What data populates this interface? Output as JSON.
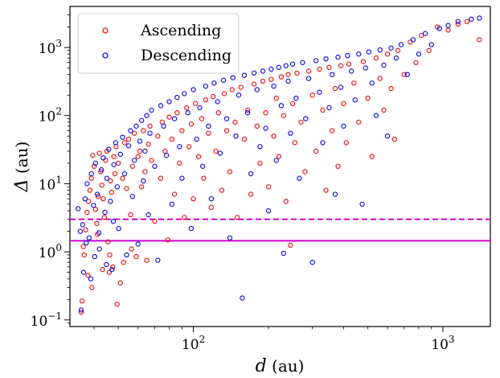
{
  "chart_data": {
    "type": "scatter",
    "title": "",
    "xscale": "log",
    "yscale": "log",
    "xlim": [
      32,
      1550
    ],
    "ylim": [
      0.08,
      4000
    ],
    "x_label_symbol": "d",
    "x_label_unit": " (au)",
    "y_label_symbol": "Δ",
    "y_label_unit": " (au)",
    "x_ticks": [
      {
        "value": 100,
        "base": "10",
        "exp": "2"
      },
      {
        "value": 1000,
        "base": "10",
        "exp": "3"
      }
    ],
    "y_ticks": [
      {
        "value": 0.1,
        "base": "10",
        "exp": "−1"
      },
      {
        "value": 1,
        "base": "10",
        "exp": "0"
      },
      {
        "value": 10,
        "base": "10",
        "exp": "1"
      },
      {
        "value": 100,
        "base": "10",
        "exp": "2"
      },
      {
        "value": 1000,
        "base": "10",
        "exp": "3"
      }
    ],
    "legend_position": "top-left",
    "hlines": [
      {
        "y": 3.0,
        "style": "dashed",
        "color": "#cc00cc"
      },
      {
        "y": 1.45,
        "style": "solid",
        "color": "#cc00cc"
      }
    ],
    "series": [
      {
        "name": "Ascending",
        "color": "#e8191c",
        "points": [
          [
            35.5,
            0.13
          ],
          [
            35.8,
            0.19
          ],
          [
            36.5,
            0.9
          ],
          [
            37,
            2.1
          ],
          [
            37.5,
            3.8
          ],
          [
            38,
            5.5
          ],
          [
            38.5,
            8
          ],
          [
            39,
            12
          ],
          [
            39.5,
            26
          ],
          [
            40,
            18
          ],
          [
            40.5,
            4.2
          ],
          [
            41,
            2.6
          ],
          [
            41.5,
            6.5
          ],
          [
            42,
            28
          ],
          [
            42.5,
            15
          ],
          [
            43,
            9.5
          ],
          [
            43.5,
            6
          ],
          [
            44,
            3.2
          ],
          [
            44.5,
            22
          ],
          [
            45,
            30
          ],
          [
            45.5,
            1.4
          ],
          [
            46,
            0.5
          ],
          [
            46.5,
            11
          ],
          [
            47,
            7.5
          ],
          [
            47.5,
            0.6
          ],
          [
            48,
            25
          ],
          [
            48.5,
            14
          ],
          [
            49,
            35
          ],
          [
            49.5,
            0.17
          ],
          [
            50,
            20
          ],
          [
            51,
            0.35
          ],
          [
            52,
            12
          ],
          [
            53,
            40
          ],
          [
            54,
            8.5
          ],
          [
            55,
            45
          ],
          [
            56,
            3.5
          ],
          [
            57,
            18
          ],
          [
            58,
            55
          ],
          [
            59,
            0.85
          ],
          [
            60,
            25
          ],
          [
            61,
            30
          ],
          [
            62,
            9
          ],
          [
            63,
            60
          ],
          [
            64,
            15
          ],
          [
            65,
            0.75
          ],
          [
            66,
            38
          ],
          [
            67,
            70
          ],
          [
            68,
            22
          ],
          [
            70,
            2.8
          ],
          [
            72,
            50
          ],
          [
            74,
            12
          ],
          [
            75,
            80
          ],
          [
            77,
            30
          ],
          [
            79,
            1.5
          ],
          [
            80,
            95
          ],
          [
            82,
            45
          ],
          [
            84,
            7
          ],
          [
            86,
            110
          ],
          [
            88,
            20
          ],
          [
            90,
            60
          ],
          [
            92,
            3.2
          ],
          [
            94,
            130
          ],
          [
            96,
            35
          ],
          [
            98,
            75
          ],
          [
            100,
            6
          ],
          [
            102,
            150
          ],
          [
            105,
            25
          ],
          [
            108,
            90
          ],
          [
            110,
            12
          ],
          [
            112,
            170
          ],
          [
            115,
            55
          ],
          [
            118,
            4.5
          ],
          [
            120,
            190
          ],
          [
            123,
            30
          ],
          [
            126,
            110
          ],
          [
            130,
            8
          ],
          [
            133,
            210
          ],
          [
            136,
            60
          ],
          [
            140,
            15
          ],
          [
            143,
            240
          ],
          [
            147,
            80
          ],
          [
            150,
            3.2
          ],
          [
            155,
            260
          ],
          [
            160,
            45
          ],
          [
            165,
            120
          ],
          [
            170,
            7
          ],
          [
            175,
            290
          ],
          [
            180,
            70
          ],
          [
            185,
            20
          ],
          [
            190,
            320
          ],
          [
            195,
            110
          ],
          [
            200,
            9
          ],
          [
            205,
            340
          ],
          [
            210,
            50
          ],
          [
            215,
            180
          ],
          [
            220,
            25
          ],
          [
            225,
            370
          ],
          [
            230,
            100
          ],
          [
            235,
            5.5
          ],
          [
            240,
            400
          ],
          [
            245,
            1.25
          ],
          [
            250,
            150
          ],
          [
            255,
            40
          ],
          [
            260,
            420
          ],
          [
            270,
            80
          ],
          [
            280,
            15
          ],
          [
            290,
            450
          ],
          [
            300,
            200
          ],
          [
            310,
            30
          ],
          [
            320,
            480
          ],
          [
            330,
            120
          ],
          [
            340,
            8
          ],
          [
            350,
            510
          ],
          [
            360,
            60
          ],
          [
            370,
            250
          ],
          [
            380,
            18
          ],
          [
            390,
            540
          ],
          [
            400,
            150
          ],
          [
            410,
            40
          ],
          [
            420,
            570
          ],
          [
            440,
            300
          ],
          [
            460,
            80
          ],
          [
            480,
            620
          ],
          [
            500,
            180
          ],
          [
            520,
            25
          ],
          [
            540,
            700
          ],
          [
            560,
            350
          ],
          [
            580,
            120
          ],
          [
            600,
            800
          ],
          [
            620,
            250
          ],
          [
            640,
            45
          ],
          [
            660,
            900
          ],
          [
            700,
            400
          ],
          [
            740,
            1200
          ],
          [
            780,
            600
          ],
          [
            820,
            1500
          ],
          [
            880,
            900
          ],
          [
            950,
            2000
          ],
          [
            1050,
            1800
          ],
          [
            1150,
            2200
          ],
          [
            1250,
            2400
          ],
          [
            1400,
            1300
          ],
          [
            36.2,
            1.2
          ],
          [
            37.8,
            0.45
          ],
          [
            39.2,
            0.3
          ],
          [
            41.2,
            1.8
          ],
          [
            43.2,
            0.55
          ],
          [
            46.2,
            0.9
          ],
          [
            52.5,
            0.7
          ],
          [
            56.5,
            1.1
          ]
        ]
      },
      {
        "name": "Descending",
        "color": "#1414e0",
        "points": [
          [
            34.5,
            4.3
          ],
          [
            35.5,
            0.14
          ],
          [
            36,
            2.5
          ],
          [
            36.8,
            6
          ],
          [
            37.5,
            10
          ],
          [
            38.2,
            1.6
          ],
          [
            39,
            14
          ],
          [
            39.8,
            4.8
          ],
          [
            40.5,
            20
          ],
          [
            41.2,
            7
          ],
          [
            42,
            1.1
          ],
          [
            42.8,
            16
          ],
          [
            43.5,
            24
          ],
          [
            44.2,
            3.8
          ],
          [
            45,
            12
          ],
          [
            45.8,
            32
          ],
          [
            46.5,
            5.5
          ],
          [
            47.2,
            0.55
          ],
          [
            48,
            19
          ],
          [
            48.8,
            40
          ],
          [
            49.5,
            9
          ],
          [
            50.2,
            2.2
          ],
          [
            51,
            27
          ],
          [
            52,
            48
          ],
          [
            53,
            14
          ],
          [
            54,
            0.9
          ],
          [
            55,
            36
          ],
          [
            56,
            60
          ],
          [
            57,
            6.5
          ],
          [
            58,
            22
          ],
          [
            59,
            70
          ],
          [
            60,
            1.3
          ],
          [
            61,
            42
          ],
          [
            62,
            85
          ],
          [
            63,
            11
          ],
          [
            64,
            30
          ],
          [
            65,
            100
          ],
          [
            66,
            3.5
          ],
          [
            67,
            55
          ],
          [
            68,
            120
          ],
          [
            70,
            18
          ],
          [
            72,
            0.75
          ],
          [
            74,
            140
          ],
          [
            76,
            70
          ],
          [
            78,
            26
          ],
          [
            80,
            160
          ],
          [
            82,
            5
          ],
          [
            84,
            90
          ],
          [
            86,
            185
          ],
          [
            88,
            35
          ],
          [
            90,
            12
          ],
          [
            92,
            210
          ],
          [
            95,
            110
          ],
          [
            98,
            2.2
          ],
          [
            100,
            240
          ],
          [
            103,
            45
          ],
          [
            106,
            130
          ],
          [
            109,
            18
          ],
          [
            112,
            270
          ],
          [
            115,
            70
          ],
          [
            118,
            6
          ],
          [
            121,
            300
          ],
          [
            125,
            160
          ],
          [
            128,
            28
          ],
          [
            132,
            330
          ],
          [
            136,
            90
          ],
          [
            140,
            1.6
          ],
          [
            144,
            360
          ],
          [
            148,
            50
          ],
          [
            152,
            200
          ],
          [
            157,
            0.21
          ],
          [
            160,
            390
          ],
          [
            165,
            110
          ],
          [
            170,
            14
          ],
          [
            175,
            420
          ],
          [
            180,
            240
          ],
          [
            185,
            35
          ],
          [
            190,
            450
          ],
          [
            195,
            65
          ],
          [
            200,
            4
          ],
          [
            205,
            480
          ],
          [
            210,
            270
          ],
          [
            215,
            22
          ],
          [
            220,
            510
          ],
          [
            225,
            140
          ],
          [
            230,
            0.95
          ],
          [
            235,
            540
          ],
          [
            240,
            320
          ],
          [
            245,
            55
          ],
          [
            250,
            570
          ],
          [
            258,
            180
          ],
          [
            266,
            12
          ],
          [
            274,
            600
          ],
          [
            282,
            90
          ],
          [
            290,
            350
          ],
          [
            300,
            0.7
          ],
          [
            310,
            640
          ],
          [
            320,
            220
          ],
          [
            330,
            40
          ],
          [
            340,
            680
          ],
          [
            350,
            130
          ],
          [
            360,
            400
          ],
          [
            370,
            7
          ],
          [
            380,
            720
          ],
          [
            390,
            260
          ],
          [
            400,
            70
          ],
          [
            415,
            760
          ],
          [
            430,
            450
          ],
          [
            445,
            170
          ],
          [
            460,
            800
          ],
          [
            475,
            5
          ],
          [
            490,
            500
          ],
          [
            505,
            860
          ],
          [
            520,
            300
          ],
          [
            540,
            100
          ],
          [
            560,
            920
          ],
          [
            580,
            550
          ],
          [
            600,
            50
          ],
          [
            620,
            980
          ],
          [
            650,
            700
          ],
          [
            680,
            1100
          ],
          [
            720,
            400
          ],
          [
            760,
            1300
          ],
          [
            800,
            800
          ],
          [
            850,
            1600
          ],
          [
            900,
            1100
          ],
          [
            970,
            1900
          ],
          [
            1050,
            2100
          ],
          [
            1150,
            2400
          ],
          [
            1300,
            2600
          ],
          [
            1400,
            2700
          ],
          [
            35.2,
            2.0
          ],
          [
            36.3,
            0.5
          ],
          [
            37.2,
            1.35
          ],
          [
            38.8,
            0.4
          ],
          [
            40.2,
            0.85
          ],
          [
            41.8,
            1.9
          ],
          [
            44.8,
            0.65
          ],
          [
            47.8,
            2.8
          ]
        ]
      }
    ]
  }
}
